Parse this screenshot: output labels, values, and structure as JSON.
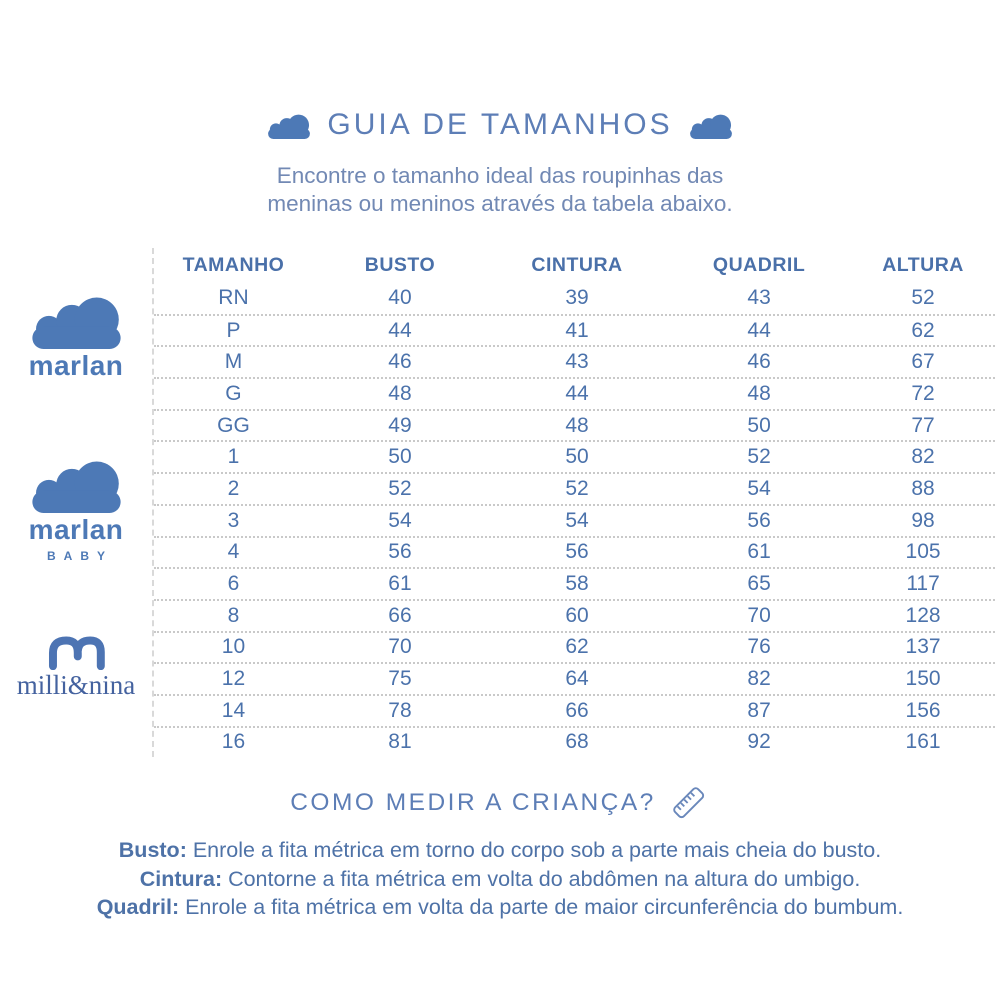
{
  "page": {
    "title": "GUIA DE TAMANHOS",
    "subtitle_line1": "Encontre o tamanho ideal das roupinhas das",
    "subtitle_line2": "meninas ou meninos através da tabela abaixo."
  },
  "brands": {
    "marlan": {
      "name": "marlan"
    },
    "marlan_baby": {
      "name": "marlan",
      "sub": "BABY"
    },
    "milli_nina": {
      "name": "milli&nina"
    }
  },
  "table": {
    "headers": [
      "TAMANHO",
      "BUSTO",
      "CINTURA",
      "QUADRIL",
      "ALTURA"
    ],
    "rows": [
      [
        "RN",
        "40",
        "39",
        "43",
        "52"
      ],
      [
        "P",
        "44",
        "41",
        "44",
        "62"
      ],
      [
        "M",
        "46",
        "43",
        "46",
        "67"
      ],
      [
        "G",
        "48",
        "44",
        "48",
        "72"
      ],
      [
        "GG",
        "49",
        "48",
        "50",
        "77"
      ],
      [
        "1",
        "50",
        "50",
        "52",
        "82"
      ],
      [
        "2",
        "52",
        "52",
        "54",
        "88"
      ],
      [
        "3",
        "54",
        "54",
        "56",
        "98"
      ],
      [
        "4",
        "56",
        "56",
        "61",
        "105"
      ],
      [
        "6",
        "61",
        "58",
        "65",
        "117"
      ],
      [
        "8",
        "66",
        "60",
        "70",
        "128"
      ],
      [
        "10",
        "70",
        "62",
        "76",
        "137"
      ],
      [
        "12",
        "75",
        "64",
        "82",
        "150"
      ],
      [
        "14",
        "78",
        "66",
        "87",
        "156"
      ],
      [
        "16",
        "81",
        "68",
        "92",
        "161"
      ]
    ]
  },
  "how_to": {
    "title": "COMO MEDIR A CRIANÇA?",
    "instructions": [
      {
        "label": "Busto:",
        "text": "Enrole a fita métrica em torno do corpo sob a parte mais cheia do busto."
      },
      {
        "label": "Cintura:",
        "text": "Contorne a fita métrica em volta do abdômen na altura do umbigo."
      },
      {
        "label": "Quadril:",
        "text": "Enrole a fita métrica em volta da parte de maior circunferência do bumbum."
      }
    ]
  },
  "colors": {
    "brand_blue": "#4d79b6",
    "title_blue": "#5d7eb6",
    "table_text_blue": "#4b72ab",
    "subtitle_blue": "#7289b4",
    "divider_dotted": "#c9c9c9",
    "divider_dashed": "#d9d9d9"
  }
}
